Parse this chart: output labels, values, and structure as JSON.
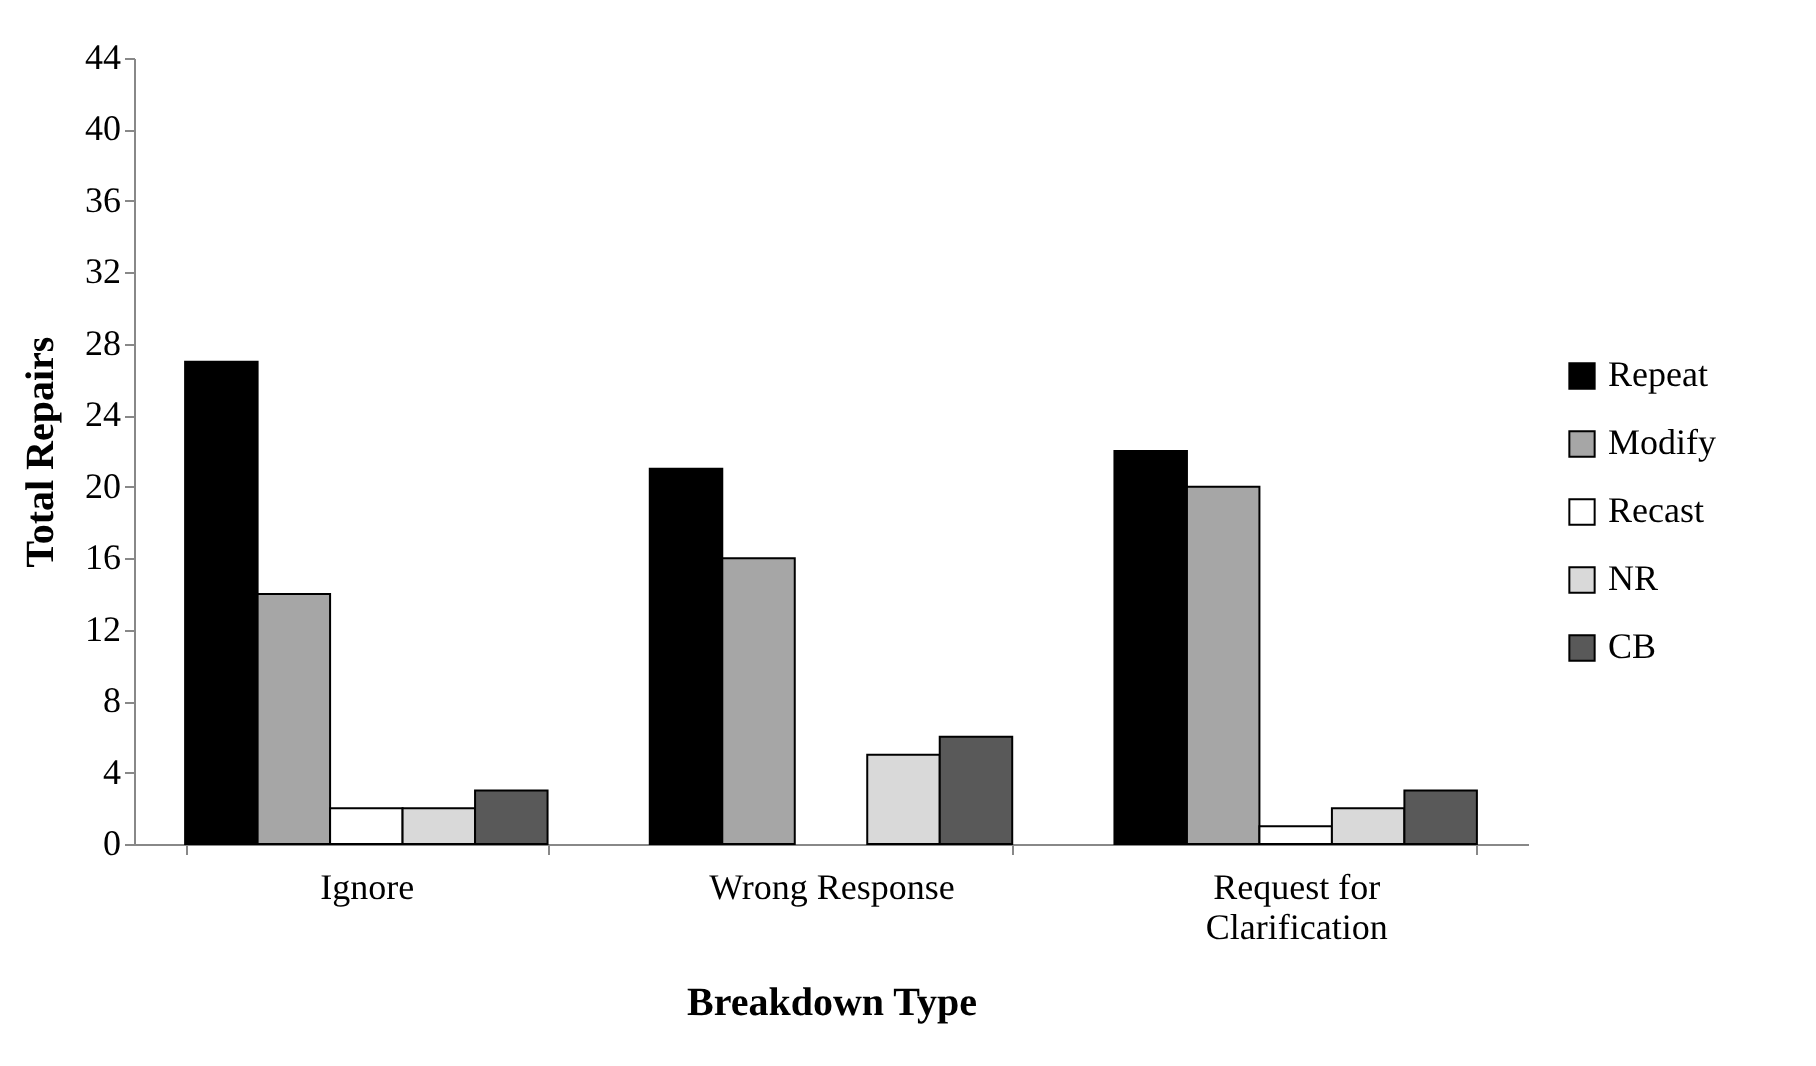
{
  "chart_data": {
    "type": "bar",
    "xlabel": "Breakdown Type",
    "ylabel": "Total Repairs",
    "categories": [
      "Ignore",
      "Wrong Response",
      "Request for Clarification"
    ],
    "series": [
      {
        "name": "Repeat",
        "color": "#000000",
        "values": [
          27,
          21,
          22
        ]
      },
      {
        "name": "Modify",
        "color": "#a6a6a6",
        "values": [
          14,
          16,
          20
        ]
      },
      {
        "name": "Recast",
        "color": "#ffffff",
        "values": [
          2,
          null,
          1
        ]
      },
      {
        "name": "NR",
        "color": "#d9d9d9",
        "values": [
          2,
          5,
          2
        ]
      },
      {
        "name": "CB",
        "color": "#595959",
        "values": [
          3,
          6,
          3
        ]
      }
    ],
    "ylim": [
      0,
      44
    ],
    "yticks": [
      0,
      4,
      8,
      12,
      16,
      20,
      24,
      28,
      32,
      36,
      40,
      44
    ],
    "grid": false,
    "legend": "right"
  }
}
